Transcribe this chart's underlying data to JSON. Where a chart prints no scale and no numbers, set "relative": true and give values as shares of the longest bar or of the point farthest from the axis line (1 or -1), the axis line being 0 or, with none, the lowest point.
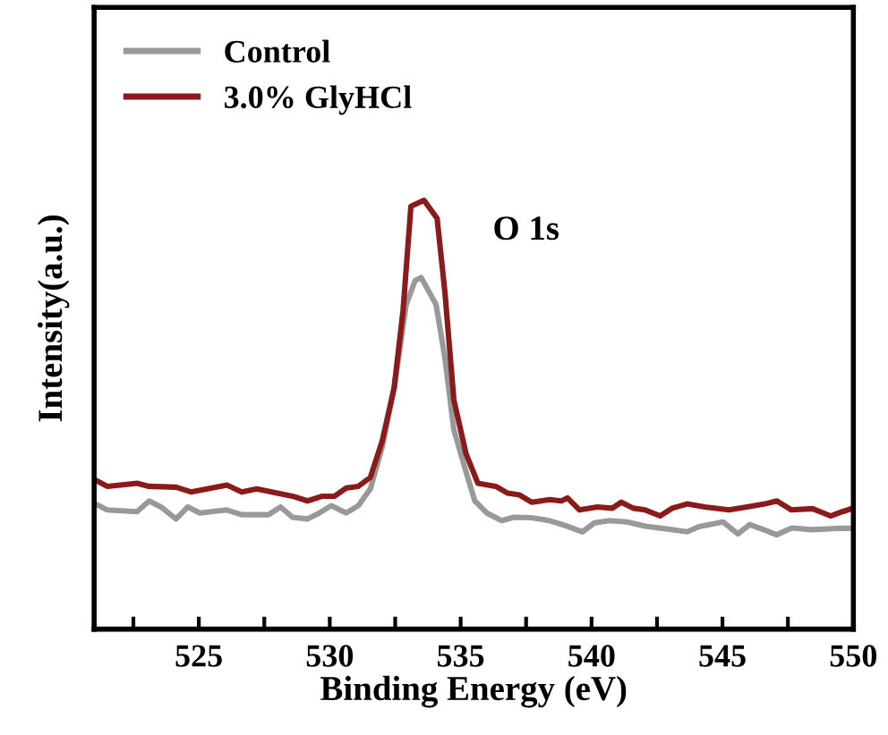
{
  "chart_data": {
    "type": "line",
    "xlabel": "Binding Energy (eV)",
    "ylabel": "Intensity(a.u.)",
    "relative": true,
    "legend": "top left",
    "grid": false,
    "marker": "none",
    "line_style": "solid",
    "tick_labels": "x",
    "annotations": [
      "O 1s"
    ],
    "xlim": [
      521,
      550
    ],
    "xticks": [
      {
        "value": 522.5,
        "label": null
      },
      525,
      {
        "value": 527.5,
        "label": null
      },
      530,
      {
        "value": 532.5,
        "label": null
      },
      535,
      {
        "value": 537.5,
        "label": null
      },
      540,
      {
        "value": 542.5,
        "label": null
      },
      545,
      {
        "value": 547.5,
        "label": null
      },
      550
    ],
    "series": [
      {
        "name": "Control",
        "color": "#999999",
        "x": [
          521.04,
          521.5,
          522.64,
          523.1,
          523.55,
          524.13,
          524.58,
          525.04,
          526.07,
          526.64,
          527.66,
          528.12,
          528.58,
          529.15,
          529.6,
          530.06,
          530.63,
          531.09,
          531.55,
          532.0,
          532.46,
          532.92,
          533.26,
          533.49,
          534.06,
          534.4,
          534.74,
          535.2,
          535.54,
          536.0,
          536.57,
          537.03,
          537.71,
          538.4,
          539.08,
          539.65,
          540.11,
          540.68,
          541.36,
          542.05,
          542.96,
          543.65,
          544.1,
          545.02,
          545.59,
          546.04,
          546.62,
          547.07,
          547.64,
          548.44,
          549.36,
          549.99
        ],
        "values": [
          0.292,
          0.278,
          0.274,
          0.299,
          0.285,
          0.257,
          0.285,
          0.271,
          0.278,
          0.267,
          0.267,
          0.285,
          0.261,
          0.257,
          0.271,
          0.288,
          0.271,
          0.288,
          0.327,
          0.424,
          0.563,
          0.757,
          0.813,
          0.82,
          0.757,
          0.632,
          0.465,
          0.368,
          0.299,
          0.271,
          0.253,
          0.261,
          0.26,
          0.253,
          0.24,
          0.227,
          0.248,
          0.253,
          0.25,
          0.24,
          0.233,
          0.227,
          0.239,
          0.25,
          0.222,
          0.244,
          0.231,
          0.22,
          0.236,
          0.232,
          0.235,
          0.235
        ]
      },
      {
        "name": "3.0% GlyHCl",
        "color": "#8b1a1a",
        "x": [
          521.04,
          521.5,
          522.64,
          523.1,
          524.13,
          524.7,
          526.07,
          526.64,
          527.21,
          528.58,
          529.15,
          529.72,
          530.18,
          530.63,
          531.09,
          531.55,
          532.0,
          532.46,
          532.8,
          533.1,
          533.6,
          534.1,
          534.4,
          534.74,
          535.2,
          535.66,
          536.34,
          536.8,
          537.25,
          537.71,
          538.4,
          538.85,
          539.08,
          539.54,
          540.22,
          540.79,
          541.14,
          541.59,
          542.05,
          542.62,
          543.08,
          543.65,
          544.33,
          545.25,
          545.93,
          546.62,
          547.07,
          547.64,
          548.44,
          549.13,
          549.58,
          549.99
        ],
        "values": [
          0.348,
          0.333,
          0.34,
          0.333,
          0.331,
          0.32,
          0.336,
          0.32,
          0.327,
          0.31,
          0.299,
          0.31,
          0.31,
          0.329,
          0.333,
          0.354,
          0.438,
          0.563,
          0.743,
          0.986,
          1.0,
          0.958,
          0.785,
          0.535,
          0.41,
          0.34,
          0.333,
          0.317,
          0.313,
          0.296,
          0.302,
          0.299,
          0.306,
          0.278,
          0.285,
          0.282,
          0.296,
          0.282,
          0.278,
          0.264,
          0.282,
          0.292,
          0.285,
          0.278,
          0.285,
          0.292,
          0.299,
          0.278,
          0.281,
          0.264,
          0.274,
          0.282
        ]
      }
    ]
  }
}
